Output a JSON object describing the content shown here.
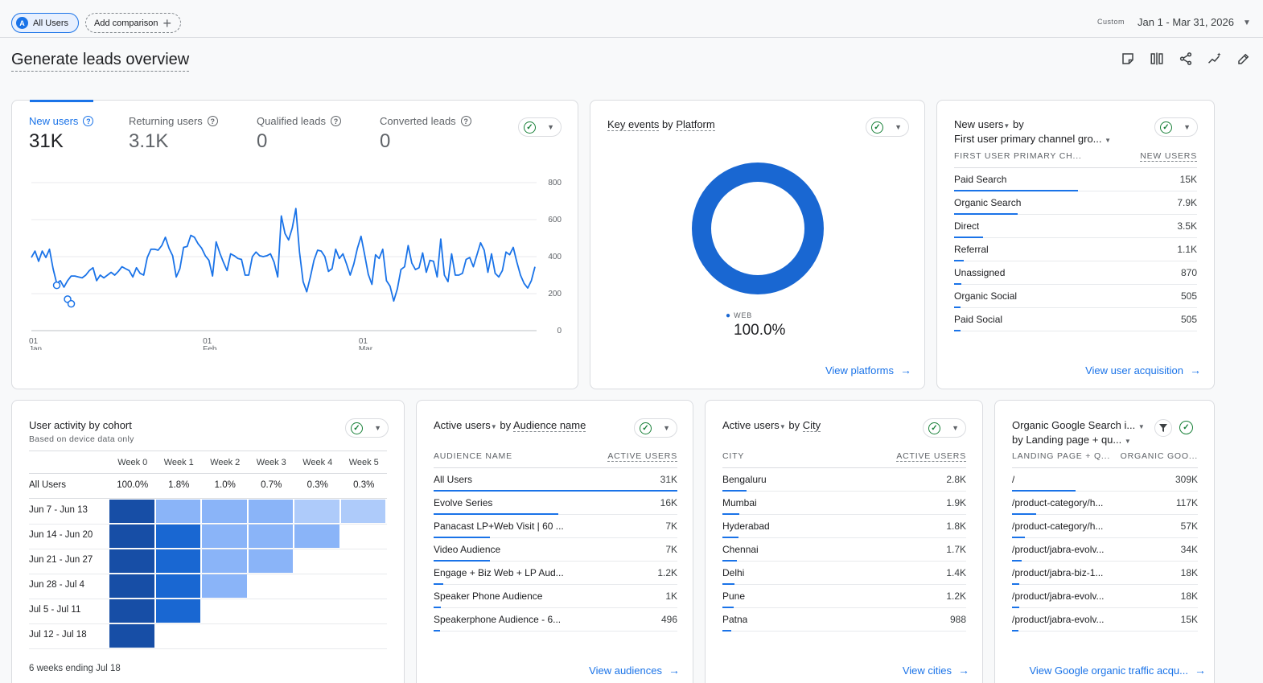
{
  "topbar": {
    "segment_avatar": "A",
    "segment_label": "All Users",
    "add_comparison": "Add comparison",
    "date_custom": "Custom",
    "date_range": "Jan 1 - Mar 31, 2026"
  },
  "page": {
    "title": "Generate leads overview"
  },
  "tools": [
    "note-icon",
    "compare-columns-icon",
    "share-icon",
    "insights-icon",
    "edit-icon"
  ],
  "colors": {
    "accent": "#1a73e8",
    "dark": "#174ea6",
    "mid": "#1967d2",
    "light": "#8ab4f8",
    "lighter": "#aecbfa",
    "check": "#188038"
  },
  "overview": {
    "metrics": [
      {
        "label": "New users",
        "value": "31K"
      },
      {
        "label": "Returning users",
        "value": "3.1K"
      },
      {
        "label": "Qualified leads",
        "value": "0"
      },
      {
        "label": "Converted leads",
        "value": "0"
      }
    ],
    "chart_data": {
      "type": "line",
      "y_ticks": [
        "800",
        "600",
        "400",
        "200",
        "0"
      ],
      "ylim": [
        0,
        800
      ],
      "x_ticks": [
        {
          "day": "01",
          "month": "Jan"
        },
        {
          "day": "01",
          "month": "Feb"
        },
        {
          "day": "01",
          "month": "Mar"
        }
      ],
      "values": [
        395,
        430,
        375,
        430,
        395,
        440,
        335,
        255,
        270,
        235,
        270,
        295,
        295,
        290,
        285,
        300,
        325,
        340,
        270,
        300,
        285,
        300,
        315,
        300,
        320,
        345,
        335,
        325,
        290,
        340,
        310,
        300,
        395,
        440,
        440,
        435,
        460,
        505,
        445,
        405,
        290,
        335,
        450,
        455,
        515,
        505,
        470,
        445,
        405,
        380,
        295,
        480,
        420,
        370,
        325,
        415,
        405,
        390,
        385,
        300,
        300,
        400,
        425,
        405,
        400,
        405,
        415,
        370,
        290,
        620,
        525,
        490,
        555,
        660,
        425,
        265,
        210,
        290,
        380,
        435,
        430,
        400,
        320,
        335,
        440,
        390,
        415,
        360,
        300,
        360,
        445,
        510,
        410,
        305,
        250,
        410,
        390,
        440,
        270,
        240,
        160,
        225,
        330,
        345,
        460,
        365,
        330,
        340,
        420,
        315,
        380,
        375,
        290,
        495,
        300,
        265,
        415,
        300,
        300,
        310,
        385,
        395,
        345,
        410,
        475,
        435,
        315,
        415,
        310,
        290,
        325,
        425,
        410,
        450,
        370,
        300,
        255,
        230,
        270,
        345
      ],
      "highlight_points": [
        [
          0,
          245
        ],
        [
          1,
          170
        ],
        [
          2,
          145
        ],
        [
          3,
          140
        ]
      ]
    }
  },
  "platform": {
    "title_a": "Key events",
    "title_by": "by",
    "title_b": "Platform",
    "chart_data": {
      "type": "pie",
      "slices": [
        {
          "name": "WEB",
          "value": 100.0
        }
      ]
    },
    "legend_label": "WEB",
    "legend_value": "100.0%",
    "link": "View platforms"
  },
  "acquisition": {
    "title_a": "New users",
    "title_by": "by",
    "title_b": "First user primary channel gro...",
    "col1": "FIRST USER PRIMARY CH...",
    "col2": "NEW USERS",
    "rows": [
      {
        "label": "Paid Search",
        "value": "15K",
        "pct": 0.51
      },
      {
        "label": "Organic Search",
        "value": "7.9K",
        "pct": 0.26
      },
      {
        "label": "Direct",
        "value": "3.5K",
        "pct": 0.12
      },
      {
        "label": "Referral",
        "value": "1.1K",
        "pct": 0.04
      },
      {
        "label": "Unassigned",
        "value": "870",
        "pct": 0.03
      },
      {
        "label": "Organic Social",
        "value": "505",
        "pct": 0.02
      },
      {
        "label": "Paid Social",
        "value": "505",
        "pct": 0.02
      }
    ],
    "link": "View user acquisition"
  },
  "cohort": {
    "title": "User activity by cohort",
    "subtitle": "Based on device data only",
    "weeks": [
      "Week 0",
      "Week 1",
      "Week 2",
      "Week 3",
      "Week 4",
      "Week 5"
    ],
    "all_label": "All Users",
    "all_values": [
      "100.0%",
      "1.8%",
      "1.0%",
      "0.7%",
      "0.3%",
      "0.3%"
    ],
    "rows": [
      {
        "label": "Jun 7 - Jun 13",
        "levels": [
          3,
          1,
          1,
          1,
          0,
          0
        ]
      },
      {
        "label": "Jun 14 - Jun 20",
        "levels": [
          3,
          2,
          1,
          1,
          1
        ]
      },
      {
        "label": "Jun 21 - Jun 27",
        "levels": [
          3,
          2,
          1,
          1
        ]
      },
      {
        "label": "Jun 28 - Jul 4",
        "levels": [
          3,
          2,
          1
        ]
      },
      {
        "label": "Jul 5 - Jul 11",
        "levels": [
          3,
          2
        ]
      },
      {
        "label": "Jul 12 - Jul 18",
        "levels": [
          3
        ]
      }
    ],
    "footer": "6 weeks ending Jul 18"
  },
  "audience": {
    "title_a": "Active users",
    "title_by": "by",
    "title_b": "Audience name",
    "col1": "AUDIENCE NAME",
    "col2": "ACTIVE USERS",
    "rows": [
      {
        "label": "All Users",
        "value": "31K",
        "pct": 1.0
      },
      {
        "label": "Evolve Series",
        "value": "16K",
        "pct": 0.51
      },
      {
        "label": "Panacast LP+Web Visit | 60 ...",
        "value": "7K",
        "pct": 0.23
      },
      {
        "label": "Video Audience",
        "value": "7K",
        "pct": 0.23
      },
      {
        "label": "Engage + Biz Web + LP Aud...",
        "value": "1.2K",
        "pct": 0.04
      },
      {
        "label": "Speaker Phone Audience",
        "value": "1K",
        "pct": 0.03
      },
      {
        "label": "Speakerphone Audience - 6...",
        "value": "496",
        "pct": 0.02
      }
    ],
    "link": "View audiences"
  },
  "city": {
    "title_a": "Active users",
    "title_by": "by",
    "title_b": "City",
    "col1": "CITY",
    "col2": "ACTIVE USERS",
    "rows": [
      {
        "label": "Bengaluru",
        "value": "2.8K",
        "pct": 0.1
      },
      {
        "label": "Mumbai",
        "value": "1.9K",
        "pct": 0.07
      },
      {
        "label": "Hyderabad",
        "value": "1.8K",
        "pct": 0.065
      },
      {
        "label": "Chennai",
        "value": "1.7K",
        "pct": 0.06
      },
      {
        "label": "Delhi",
        "value": "1.4K",
        "pct": 0.05
      },
      {
        "label": "Pune",
        "value": "1.2K",
        "pct": 0.045
      },
      {
        "label": "Patna",
        "value": "988",
        "pct": 0.035
      }
    ],
    "link": "View cities"
  },
  "organic": {
    "title_a": "Organic Google Search i...",
    "title_b": "by Landing page + qu...",
    "col1": "LANDING PAGE + Q...",
    "col2": "ORGANIC GOO...",
    "rows": [
      {
        "label": "/",
        "value": "309K",
        "pct": 0.34
      },
      {
        "label": "/product-category/h...",
        "value": "117K",
        "pct": 0.13
      },
      {
        "label": "/product-category/h...",
        "value": "57K",
        "pct": 0.07
      },
      {
        "label": "/product/jabra-evolv...",
        "value": "34K",
        "pct": 0.05
      },
      {
        "label": "/product/jabra-biz-1...",
        "value": "18K",
        "pct": 0.04
      },
      {
        "label": "/product/jabra-evolv...",
        "value": "18K",
        "pct": 0.04
      },
      {
        "label": "/product/jabra-evolv...",
        "value": "15K",
        "pct": 0.03
      }
    ],
    "link": "View Google organic traffic acqu..."
  }
}
